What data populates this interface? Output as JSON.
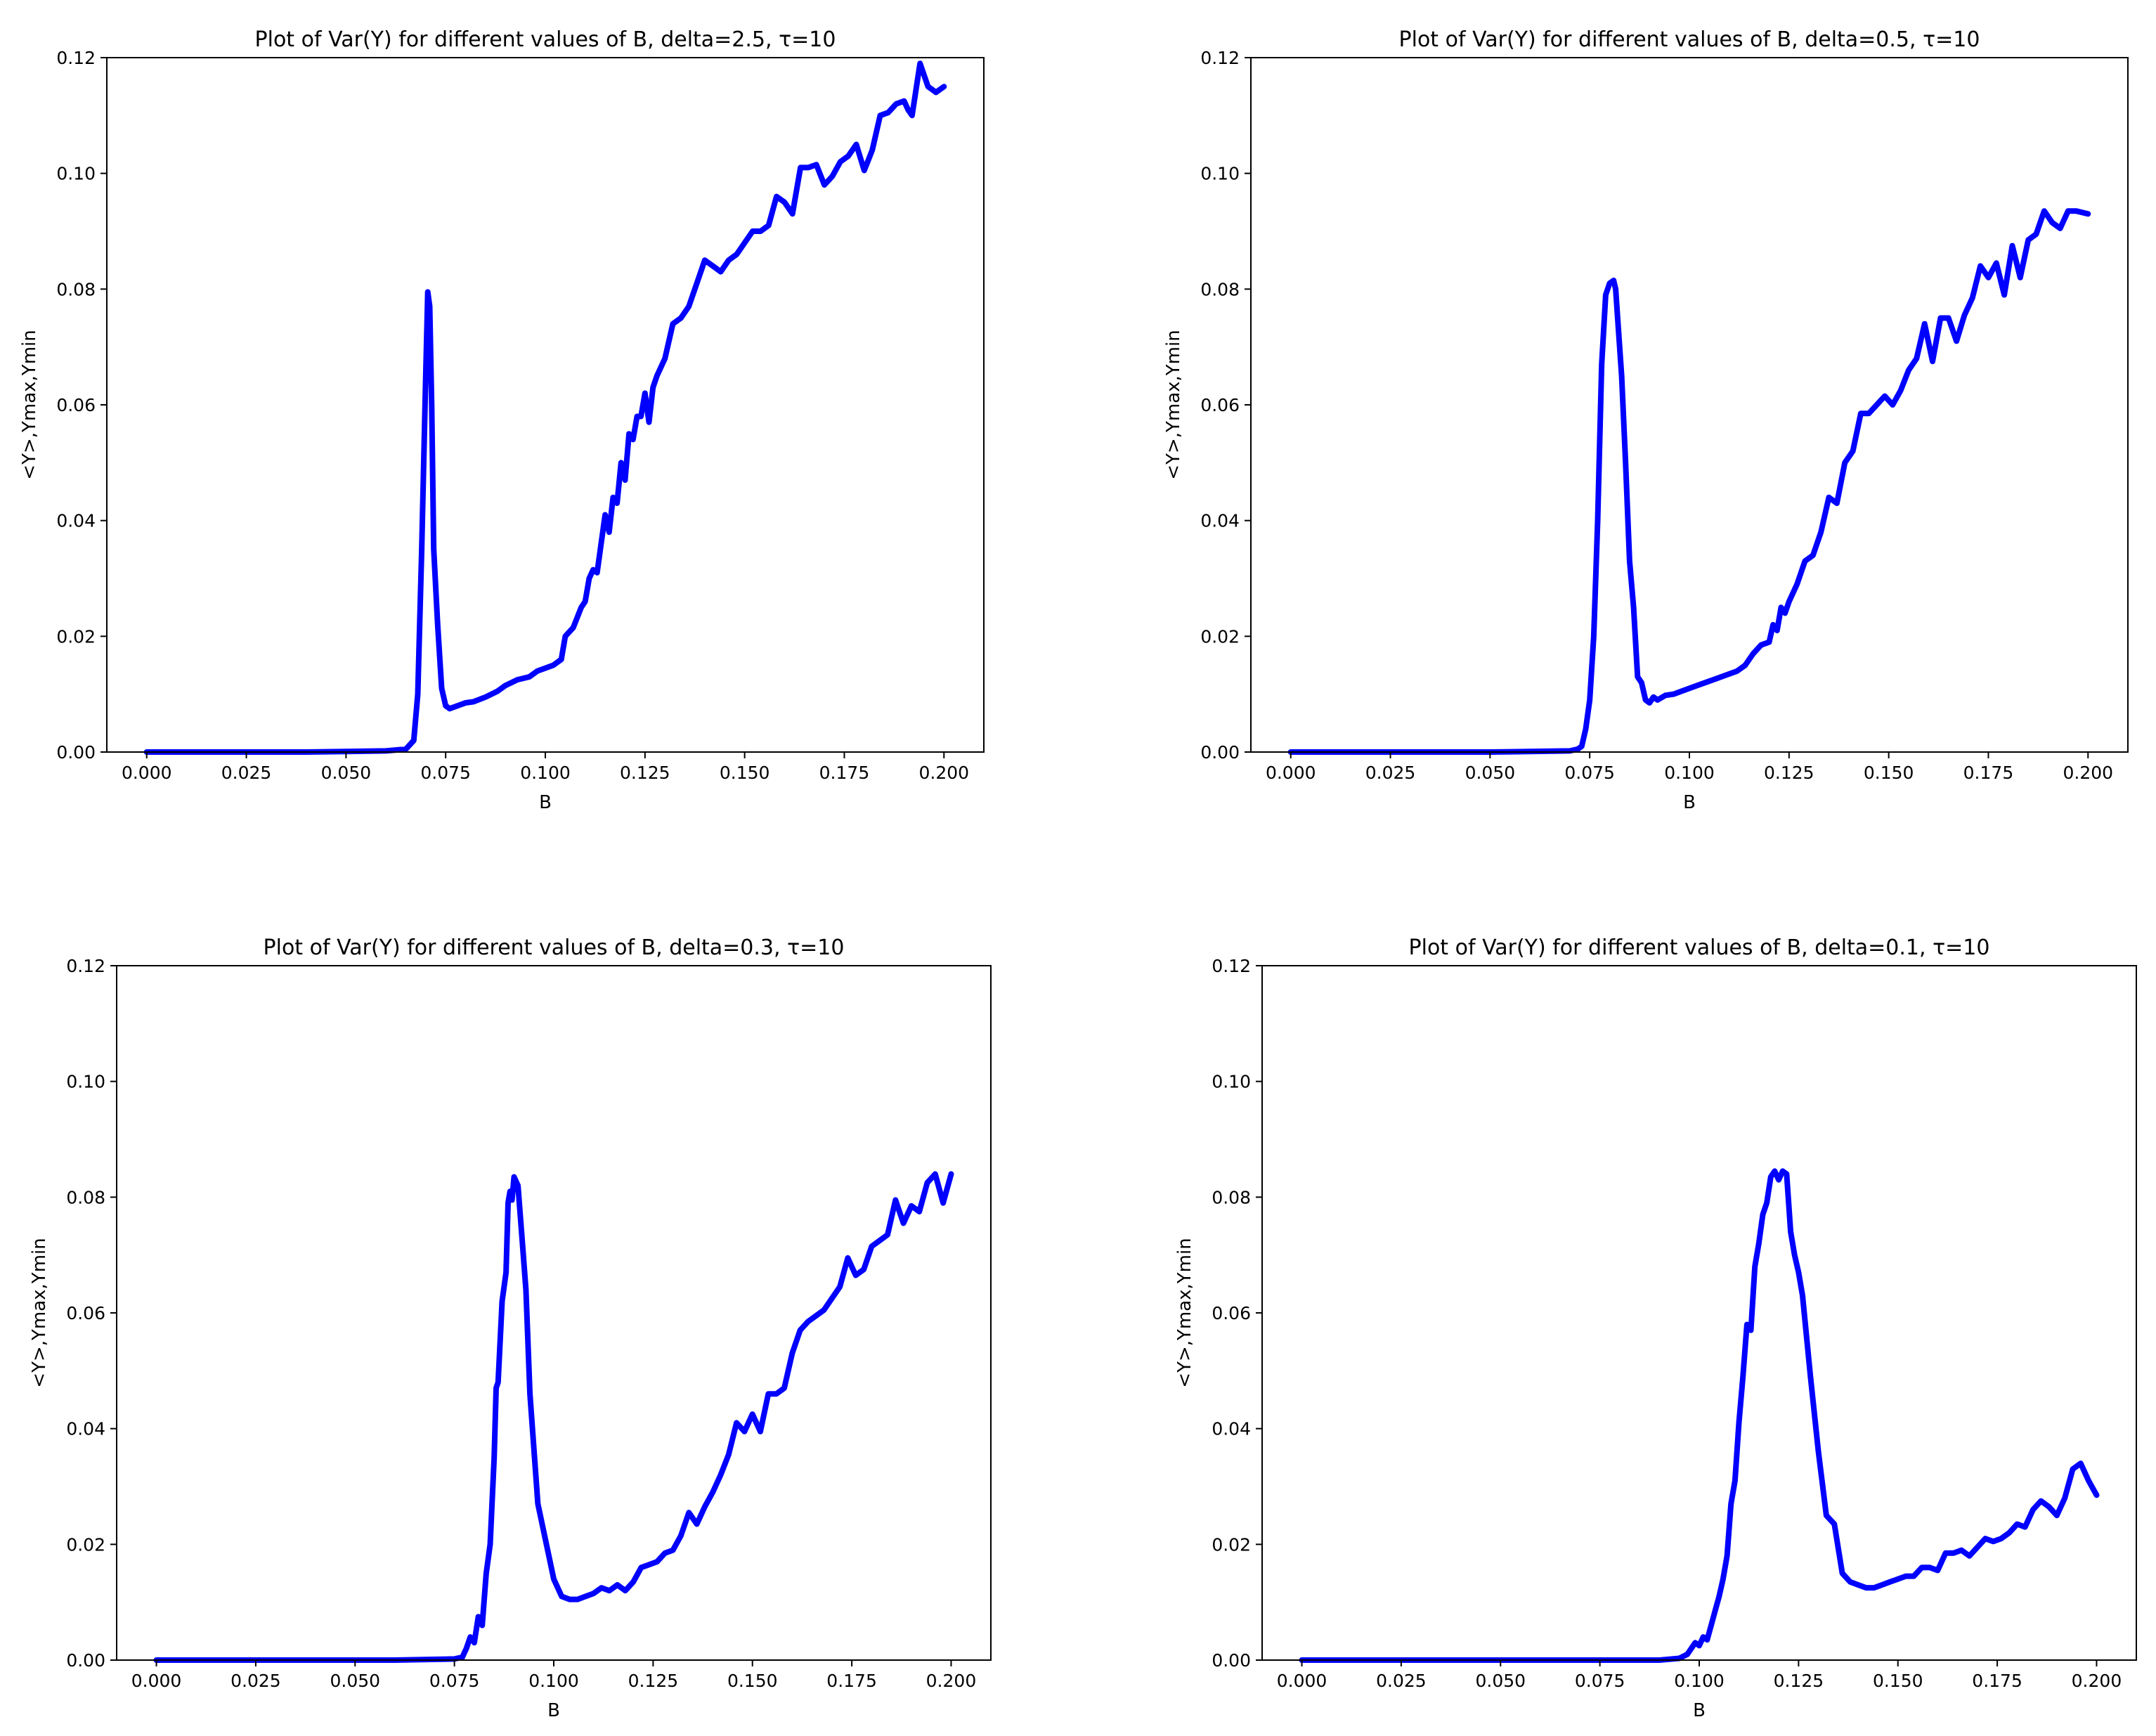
{
  "chart_data": [
    {
      "type": "line",
      "title": "Plot of Var(Y) for different values of B, delta=2.5, τ=10",
      "xlabel": "B",
      "ylabel": "<Y>,Ymax,Ymin",
      "xlim": [
        0.0,
        0.2
      ],
      "ylim": [
        0.0,
        0.12
      ],
      "xticks": [
        "0.000",
        "0.025",
        "0.050",
        "0.075",
        "0.100",
        "0.125",
        "0.150",
        "0.175",
        "0.200"
      ],
      "yticks": [
        "0.00",
        "0.02",
        "0.04",
        "0.06",
        "0.08",
        "0.10",
        "0.12"
      ],
      "grid": false,
      "color": "#0000ff",
      "x": [
        0.0,
        0.02,
        0.04,
        0.06,
        0.065,
        0.067,
        0.068,
        0.069,
        0.07,
        0.0705,
        0.071,
        0.0715,
        0.072,
        0.073,
        0.074,
        0.075,
        0.076,
        0.078,
        0.08,
        0.082,
        0.085,
        0.088,
        0.09,
        0.093,
        0.096,
        0.098,
        0.1,
        0.102,
        0.104,
        0.105,
        0.107,
        0.109,
        0.11,
        0.111,
        0.112,
        0.113,
        0.114,
        0.115,
        0.116,
        0.117,
        0.118,
        0.119,
        0.12,
        0.121,
        0.122,
        0.123,
        0.124,
        0.125,
        0.126,
        0.127,
        0.128,
        0.13,
        0.132,
        0.134,
        0.136,
        0.138,
        0.14,
        0.142,
        0.144,
        0.146,
        0.148,
        0.15,
        0.152,
        0.154,
        0.156,
        0.158,
        0.16,
        0.162,
        0.164,
        0.166,
        0.168,
        0.17,
        0.172,
        0.174,
        0.176,
        0.178,
        0.18,
        0.182,
        0.184,
        0.186,
        0.188,
        0.19,
        0.191,
        0.192,
        0.194,
        0.195,
        0.196,
        0.197,
        0.198,
        0.2
      ],
      "y": [
        0.0,
        0.0,
        0.0,
        0.0002,
        0.0005,
        0.002,
        0.01,
        0.035,
        0.065,
        0.0795,
        0.077,
        0.06,
        0.035,
        0.022,
        0.011,
        0.008,
        0.0075,
        0.008,
        0.0085,
        0.0087,
        0.0095,
        0.0105,
        0.0115,
        0.0125,
        0.013,
        0.014,
        0.0145,
        0.015,
        0.016,
        0.02,
        0.0215,
        0.025,
        0.026,
        0.03,
        0.0315,
        0.031,
        0.036,
        0.041,
        0.038,
        0.044,
        0.043,
        0.05,
        0.047,
        0.055,
        0.054,
        0.058,
        0.058,
        0.062,
        0.057,
        0.063,
        0.065,
        0.068,
        0.074,
        0.075,
        0.077,
        0.081,
        0.085,
        0.084,
        0.083,
        0.085,
        0.086,
        0.088,
        0.09,
        0.09,
        0.091,
        0.096,
        0.095,
        0.093,
        0.101,
        0.101,
        0.1015,
        0.098,
        0.0995,
        0.102,
        0.103,
        0.105,
        0.1005,
        0.104,
        0.11,
        0.1105,
        0.112,
        0.1125,
        0.111,
        0.11,
        0.119,
        0.117,
        0.115,
        0.1145,
        0.114,
        0.115
      ]
    },
    {
      "type": "line",
      "title": "Plot of Var(Y) for different values of B, delta=0.5, τ=10",
      "xlabel": "B",
      "ylabel": "<Y>,Ymax,Ymin",
      "xlim": [
        0.0,
        0.2
      ],
      "ylim": [
        0.0,
        0.12
      ],
      "xticks": [
        "0.000",
        "0.025",
        "0.050",
        "0.075",
        "0.100",
        "0.125",
        "0.150",
        "0.175",
        "0.200"
      ],
      "yticks": [
        "0.00",
        "0.02",
        "0.04",
        "0.06",
        "0.08",
        "0.10",
        "0.12"
      ],
      "grid": false,
      "color": "#0000ff",
      "x": [
        0.0,
        0.03,
        0.05,
        0.07,
        0.072,
        0.073,
        0.074,
        0.075,
        0.076,
        0.077,
        0.078,
        0.079,
        0.08,
        0.081,
        0.0815,
        0.082,
        0.083,
        0.084,
        0.085,
        0.086,
        0.087,
        0.088,
        0.089,
        0.09,
        0.091,
        0.092,
        0.094,
        0.096,
        0.098,
        0.1,
        0.102,
        0.104,
        0.106,
        0.108,
        0.11,
        0.112,
        0.114,
        0.116,
        0.118,
        0.12,
        0.121,
        0.122,
        0.123,
        0.124,
        0.125,
        0.127,
        0.129,
        0.131,
        0.133,
        0.135,
        0.137,
        0.139,
        0.141,
        0.143,
        0.145,
        0.147,
        0.149,
        0.151,
        0.153,
        0.155,
        0.157,
        0.159,
        0.161,
        0.163,
        0.165,
        0.167,
        0.169,
        0.171,
        0.173,
        0.175,
        0.177,
        0.179,
        0.181,
        0.183,
        0.185,
        0.187,
        0.189,
        0.191,
        0.193,
        0.195,
        0.197,
        0.2
      ],
      "y": [
        0.0,
        0.0,
        0.0,
        0.0002,
        0.0005,
        0.001,
        0.004,
        0.009,
        0.02,
        0.04,
        0.067,
        0.079,
        0.081,
        0.0815,
        0.08,
        0.075,
        0.065,
        0.05,
        0.033,
        0.025,
        0.013,
        0.012,
        0.009,
        0.0085,
        0.0095,
        0.009,
        0.0098,
        0.01,
        0.0105,
        0.011,
        0.0115,
        0.012,
        0.0125,
        0.013,
        0.0135,
        0.014,
        0.015,
        0.017,
        0.0185,
        0.019,
        0.022,
        0.021,
        0.025,
        0.024,
        0.026,
        0.029,
        0.033,
        0.034,
        0.038,
        0.044,
        0.043,
        0.05,
        0.052,
        0.0585,
        0.0585,
        0.06,
        0.0615,
        0.06,
        0.0625,
        0.066,
        0.068,
        0.074,
        0.0675,
        0.075,
        0.075,
        0.071,
        0.0755,
        0.0785,
        0.084,
        0.082,
        0.0845,
        0.079,
        0.0875,
        0.082,
        0.0885,
        0.0895,
        0.0935,
        0.0915,
        0.0905,
        0.0935,
        0.0935,
        0.093
      ]
    },
    {
      "type": "line",
      "title": "Plot of Var(Y) for different values of B, delta=0.3, τ=10",
      "xlabel": "B",
      "ylabel": "<Y>,Ymax,Ymin",
      "xlim": [
        0.0,
        0.2
      ],
      "ylim": [
        0.0,
        0.12
      ],
      "xticks": [
        "0.000",
        "0.025",
        "0.050",
        "0.075",
        "0.100",
        "0.125",
        "0.150",
        "0.175",
        "0.200"
      ],
      "yticks": [
        "0.00",
        "0.02",
        "0.04",
        "0.06",
        "0.08",
        "0.10",
        "0.12"
      ],
      "grid": false,
      "color": "#0000ff",
      "x": [
        0.0,
        0.03,
        0.06,
        0.075,
        0.077,
        0.078,
        0.079,
        0.08,
        0.081,
        0.082,
        0.083,
        0.084,
        0.085,
        0.0855,
        0.086,
        0.087,
        0.088,
        0.0885,
        0.089,
        0.0895,
        0.09,
        0.091,
        0.092,
        0.093,
        0.094,
        0.096,
        0.098,
        0.1,
        0.102,
        0.104,
        0.106,
        0.108,
        0.11,
        0.112,
        0.114,
        0.116,
        0.118,
        0.12,
        0.122,
        0.124,
        0.126,
        0.128,
        0.13,
        0.132,
        0.134,
        0.136,
        0.138,
        0.14,
        0.142,
        0.144,
        0.146,
        0.148,
        0.15,
        0.152,
        0.154,
        0.156,
        0.158,
        0.16,
        0.162,
        0.164,
        0.166,
        0.168,
        0.17,
        0.172,
        0.174,
        0.176,
        0.178,
        0.18,
        0.182,
        0.184,
        0.186,
        0.188,
        0.19,
        0.192,
        0.194,
        0.196,
        0.198,
        0.2
      ],
      "y": [
        0.0,
        0.0,
        0.0,
        0.0002,
        0.0005,
        0.002,
        0.004,
        0.003,
        0.0075,
        0.006,
        0.015,
        0.02,
        0.035,
        0.047,
        0.048,
        0.062,
        0.067,
        0.079,
        0.081,
        0.0795,
        0.0835,
        0.082,
        0.073,
        0.064,
        0.046,
        0.027,
        0.0205,
        0.014,
        0.011,
        0.0105,
        0.0105,
        0.011,
        0.0115,
        0.0125,
        0.012,
        0.013,
        0.012,
        0.0135,
        0.016,
        0.0165,
        0.017,
        0.0185,
        0.019,
        0.0215,
        0.0255,
        0.0235,
        0.0265,
        0.029,
        0.032,
        0.0355,
        0.041,
        0.0395,
        0.0425,
        0.0395,
        0.046,
        0.046,
        0.047,
        0.053,
        0.057,
        0.0585,
        0.0595,
        0.0605,
        0.0625,
        0.0645,
        0.0695,
        0.0665,
        0.0675,
        0.0715,
        0.0725,
        0.0735,
        0.0795,
        0.0755,
        0.0785,
        0.0775,
        0.0825,
        0.084,
        0.079,
        0.084
      ]
    },
    {
      "type": "line",
      "title": "Plot of Var(Y) for different values of B, delta=0.1, τ=10",
      "xlabel": "B",
      "ylabel": "<Y>,Ymax,Ymin",
      "xlim": [
        0.0,
        0.2
      ],
      "ylim": [
        0.0,
        0.12
      ],
      "xticks": [
        "0.000",
        "0.025",
        "0.050",
        "0.075",
        "0.100",
        "0.125",
        "0.150",
        "0.175",
        "0.200"
      ],
      "yticks": [
        "0.00",
        "0.02",
        "0.04",
        "0.06",
        "0.08",
        "0.10",
        "0.12"
      ],
      "grid": false,
      "color": "#0000ff",
      "x": [
        0.0,
        0.03,
        0.06,
        0.09,
        0.095,
        0.097,
        0.098,
        0.099,
        0.1,
        0.101,
        0.102,
        0.103,
        0.104,
        0.105,
        0.106,
        0.107,
        0.108,
        0.109,
        0.11,
        0.111,
        0.112,
        0.113,
        0.114,
        0.115,
        0.116,
        0.117,
        0.118,
        0.119,
        0.12,
        0.121,
        0.122,
        0.123,
        0.124,
        0.125,
        0.126,
        0.128,
        0.13,
        0.132,
        0.134,
        0.136,
        0.138,
        0.14,
        0.142,
        0.144,
        0.146,
        0.148,
        0.15,
        0.152,
        0.154,
        0.156,
        0.158,
        0.16,
        0.162,
        0.164,
        0.166,
        0.168,
        0.17,
        0.172,
        0.174,
        0.176,
        0.178,
        0.18,
        0.182,
        0.184,
        0.186,
        0.188,
        0.19,
        0.192,
        0.194,
        0.196,
        0.198,
        0.2
      ],
      "y": [
        0.0,
        0.0,
        0.0,
        0.0,
        0.0003,
        0.001,
        0.002,
        0.003,
        0.0025,
        0.004,
        0.0035,
        0.006,
        0.0085,
        0.011,
        0.014,
        0.018,
        0.027,
        0.031,
        0.041,
        0.049,
        0.058,
        0.057,
        0.068,
        0.072,
        0.077,
        0.079,
        0.0835,
        0.0845,
        0.083,
        0.0845,
        0.084,
        0.074,
        0.07,
        0.067,
        0.063,
        0.049,
        0.036,
        0.025,
        0.0235,
        0.015,
        0.0135,
        0.013,
        0.0125,
        0.0125,
        0.013,
        0.0135,
        0.014,
        0.0145,
        0.0145,
        0.016,
        0.016,
        0.0155,
        0.0185,
        0.0185,
        0.019,
        0.018,
        0.0195,
        0.021,
        0.0205,
        0.021,
        0.022,
        0.0235,
        0.023,
        0.026,
        0.0275,
        0.0265,
        0.025,
        0.028,
        0.033,
        0.034,
        0.031,
        0.0285
      ]
    }
  ]
}
